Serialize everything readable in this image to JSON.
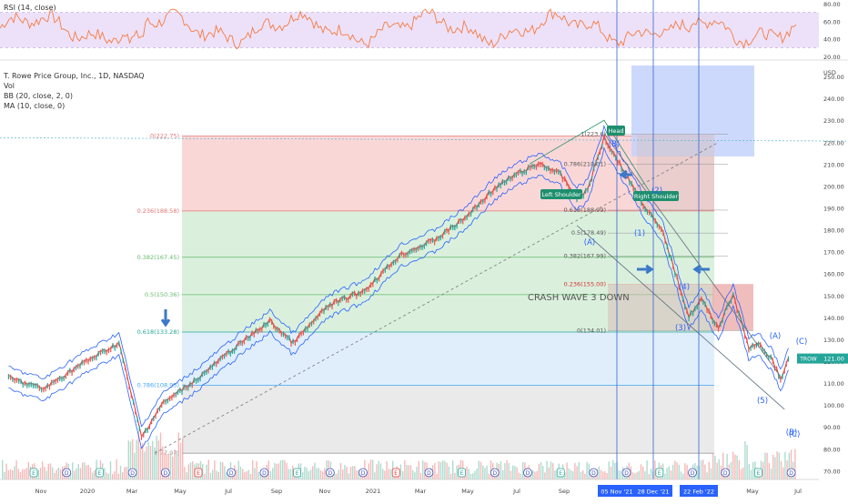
{
  "chart_data": {
    "type": "line",
    "instrument": "T. Rowe Price Group, Inc., 1D, NASDAQ",
    "indicators": [
      "Vol",
      "BB (20, close, 2, 0)",
      "MA (10, close, 0)"
    ],
    "rsi": {
      "label": "RSI (14, close)",
      "y_ticks": [
        "80.00",
        "60.00",
        "40.00",
        "20.00"
      ],
      "ylim": [
        20,
        80
      ],
      "band": [
        30,
        70
      ]
    },
    "price_axis": {
      "unit": "USD",
      "ticks": [
        "250.00",
        "240.00",
        "230.00",
        "220.00",
        "210.00",
        "200.00",
        "190.00",
        "180.00",
        "170.00",
        "160.00",
        "150.00",
        "140.00",
        "130.00",
        "120.00",
        "110.00",
        "100.00",
        "90.00",
        "80.00",
        "70.00"
      ],
      "ylim": [
        66,
        255
      ]
    },
    "x_axis": {
      "ticks": [
        "Nov",
        "2020",
        "Mar",
        "May",
        "Jul",
        "Sep",
        "Nov",
        "2021",
        "Mar",
        "May",
        "Jul",
        "Sep",
        "Nov",
        "Jan",
        "Mar",
        "May",
        "Jul"
      ],
      "highlighted": [
        "05 Nov '21",
        "28 Dec '21",
        "22 Feb '22"
      ]
    },
    "series": [
      {
        "name": "close",
        "x": [
          "2019-10-01",
          "2019-11-15",
          "2020-01-01",
          "2020-02-20",
          "2020-03-20",
          "2020-04-15",
          "2020-06-01",
          "2020-07-15",
          "2020-09-01",
          "2020-10-01",
          "2020-11-15",
          "2021-01-01",
          "2021-02-15",
          "2021-04-01",
          "2021-05-10",
          "2021-06-15",
          "2021-07-15",
          "2021-08-15",
          "2021-09-10",
          "2021-10-01",
          "2021-10-15",
          "2021-11-05",
          "2021-11-25",
          "2021-12-28",
          "2022-01-20",
          "2022-02-22",
          "2022-03-10",
          "2022-04-01",
          "2022-04-20",
          "2022-05-10",
          "2022-05-25",
          "2022-06-10",
          "2022-06-20",
          "2022-06-30"
        ],
        "values": [
          112,
          107,
          118,
          128,
          85,
          100,
          112,
          125,
          138,
          128,
          145,
          152,
          168,
          175,
          185,
          198,
          205,
          210,
          205,
          194,
          198,
          222,
          210,
          190,
          178,
          140,
          148,
          135,
          150,
          126,
          127,
          120,
          111,
          121
        ]
      }
    ],
    "fib_left": [
      {
        "label": "0(222.75)",
        "value": 222.75
      },
      {
        "label": "0.236(188.58)",
        "value": 188.58
      },
      {
        "label": "0.382(167.45)",
        "value": 167.45
      },
      {
        "label": "0.5(150.36)",
        "value": 150.36
      },
      {
        "label": "0.618(133.28)",
        "value": 133.28
      },
      {
        "label": "0.786(108.95)",
        "value": 108.95
      },
      {
        "label": "1(77.97)",
        "value": 77.97
      }
    ],
    "fib_right": [
      {
        "label": "1(223.6)",
        "value": 223.6
      },
      {
        "label": "0.786(210.01)",
        "value": 210.01
      },
      {
        "label": "0.618(188.99)",
        "value": 188.99
      },
      {
        "label": "0.5(178.49)",
        "value": 178.49
      },
      {
        "label": "0.382(167.99)",
        "value": 167.99
      },
      {
        "label": "0.236(155.00)",
        "value": 155.0
      },
      {
        "label": "0(134.01)",
        "value": 134.01
      }
    ],
    "annotations": {
      "head": "Head",
      "left_shoulder": "Left Shoulder",
      "right_shoulder": "Right Shoulder",
      "crash_text": "CRASH  WAVE 3 DOWN",
      "waves": [
        "(1)",
        "(2)",
        "(3)",
        "(4)",
        "(5)",
        "(A)",
        "(B)",
        "(C)",
        "(A)",
        "(B)",
        "(C)"
      ]
    },
    "last_price": {
      "symbol": "TROW",
      "value": "121.00"
    },
    "earnings_markers": "E D E D D E D D E D D E D E D D E D D E D D E D",
    "colors": {
      "rsi": "#f57c42",
      "rsi_band": "#e8d9f7",
      "bb": "#2962ff",
      "ma": "#e53935",
      "fib_red": "#f8c9c9",
      "fib_green": "#cdebd2",
      "fib_blue": "#d6e8fb",
      "fib_grey": "#e3e3e3",
      "sel_blue": "#c4d2fb",
      "teal": "#1e8f6e",
      "arrow": "#3b79c9"
    }
  }
}
